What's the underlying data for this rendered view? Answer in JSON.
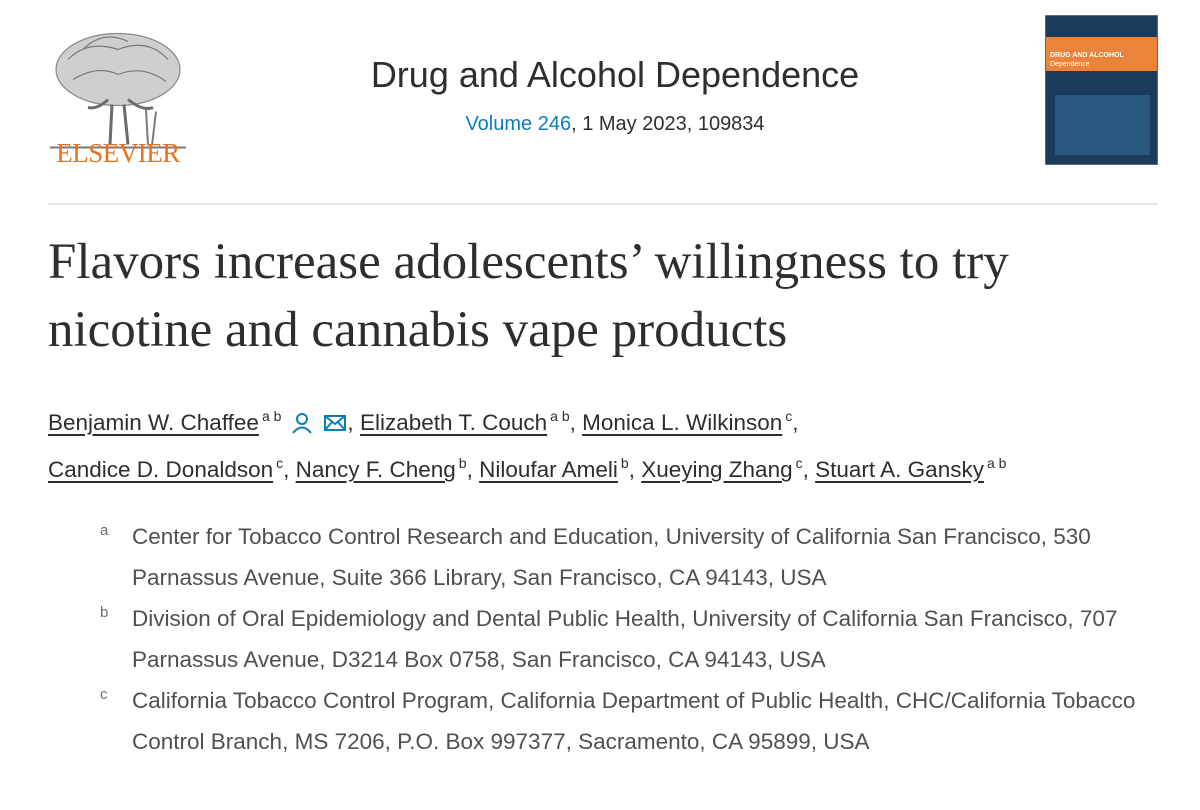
{
  "header": {
    "publisher": "ELSEVIER",
    "journal": "Drug and Alcohol Dependence",
    "volume": "Volume 246",
    "issue_details": ", 1 May 2023, 109834",
    "cover_title": "DRUG AND ALCOHOL",
    "cover_subtitle": "Dependence"
  },
  "article": {
    "title": "Flavors increase adolescents’ willingness to try nicotine and cannabis vape products",
    "author_separator": ",",
    "authors": [
      {
        "name": "Benjamin W. Chaffee",
        "affiliations": "a b"
      },
      {
        "name": "Elizabeth T. Couch",
        "affiliations": "a b"
      },
      {
        "name": "Monica L. Wilkinson",
        "affiliations": "c"
      },
      {
        "name": "Candice D. Donaldson",
        "affiliations": "c"
      },
      {
        "name": "Nancy F. Cheng",
        "affiliations": "b"
      },
      {
        "name": "Niloufar Ameli",
        "affiliations": "b"
      },
      {
        "name": "Xueying Zhang",
        "affiliations": "c"
      },
      {
        "name": "Stuart A. Gansky",
        "affiliations": "a b"
      }
    ],
    "affiliations": [
      {
        "label": "a",
        "text": "Center for Tobacco Control Research and Education, University of California San Francisco, 530 Parnassus Avenue, Suite 366 Library, San Francisco, CA 94143, USA"
      },
      {
        "label": "b",
        "text": "Division of Oral Epidemiology and Dental Public Health, University of California San Francisco, 707 Parnassus Avenue, D3214 Box 0758, San Francisco, CA 94143, USA"
      },
      {
        "label": "c",
        "text": "California Tobacco Control Program, California Department of Public Health, CHC/California Tobacco Control Branch, MS 7206, P.O. Box 997377, Sacramento, CA 95899, USA"
      }
    ]
  }
}
